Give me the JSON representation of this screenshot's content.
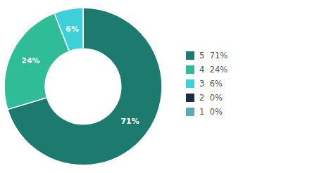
{
  "chart_data": {
    "type": "donut",
    "categories": [
      "5  71%",
      "4  24%",
      "3  6%",
      "2  0%",
      "1  0%"
    ],
    "values": [
      71,
      24,
      6,
      0.001,
      0.001
    ],
    "value_labels": [
      "71%",
      "24%",
      "6%",
      null,
      null
    ],
    "colors": [
      "#1d7a6e",
      "#2ebd96",
      "#3dd0d8",
      "#192d45",
      "#5aaab8"
    ],
    "data_labels": true,
    "legend": "right"
  }
}
